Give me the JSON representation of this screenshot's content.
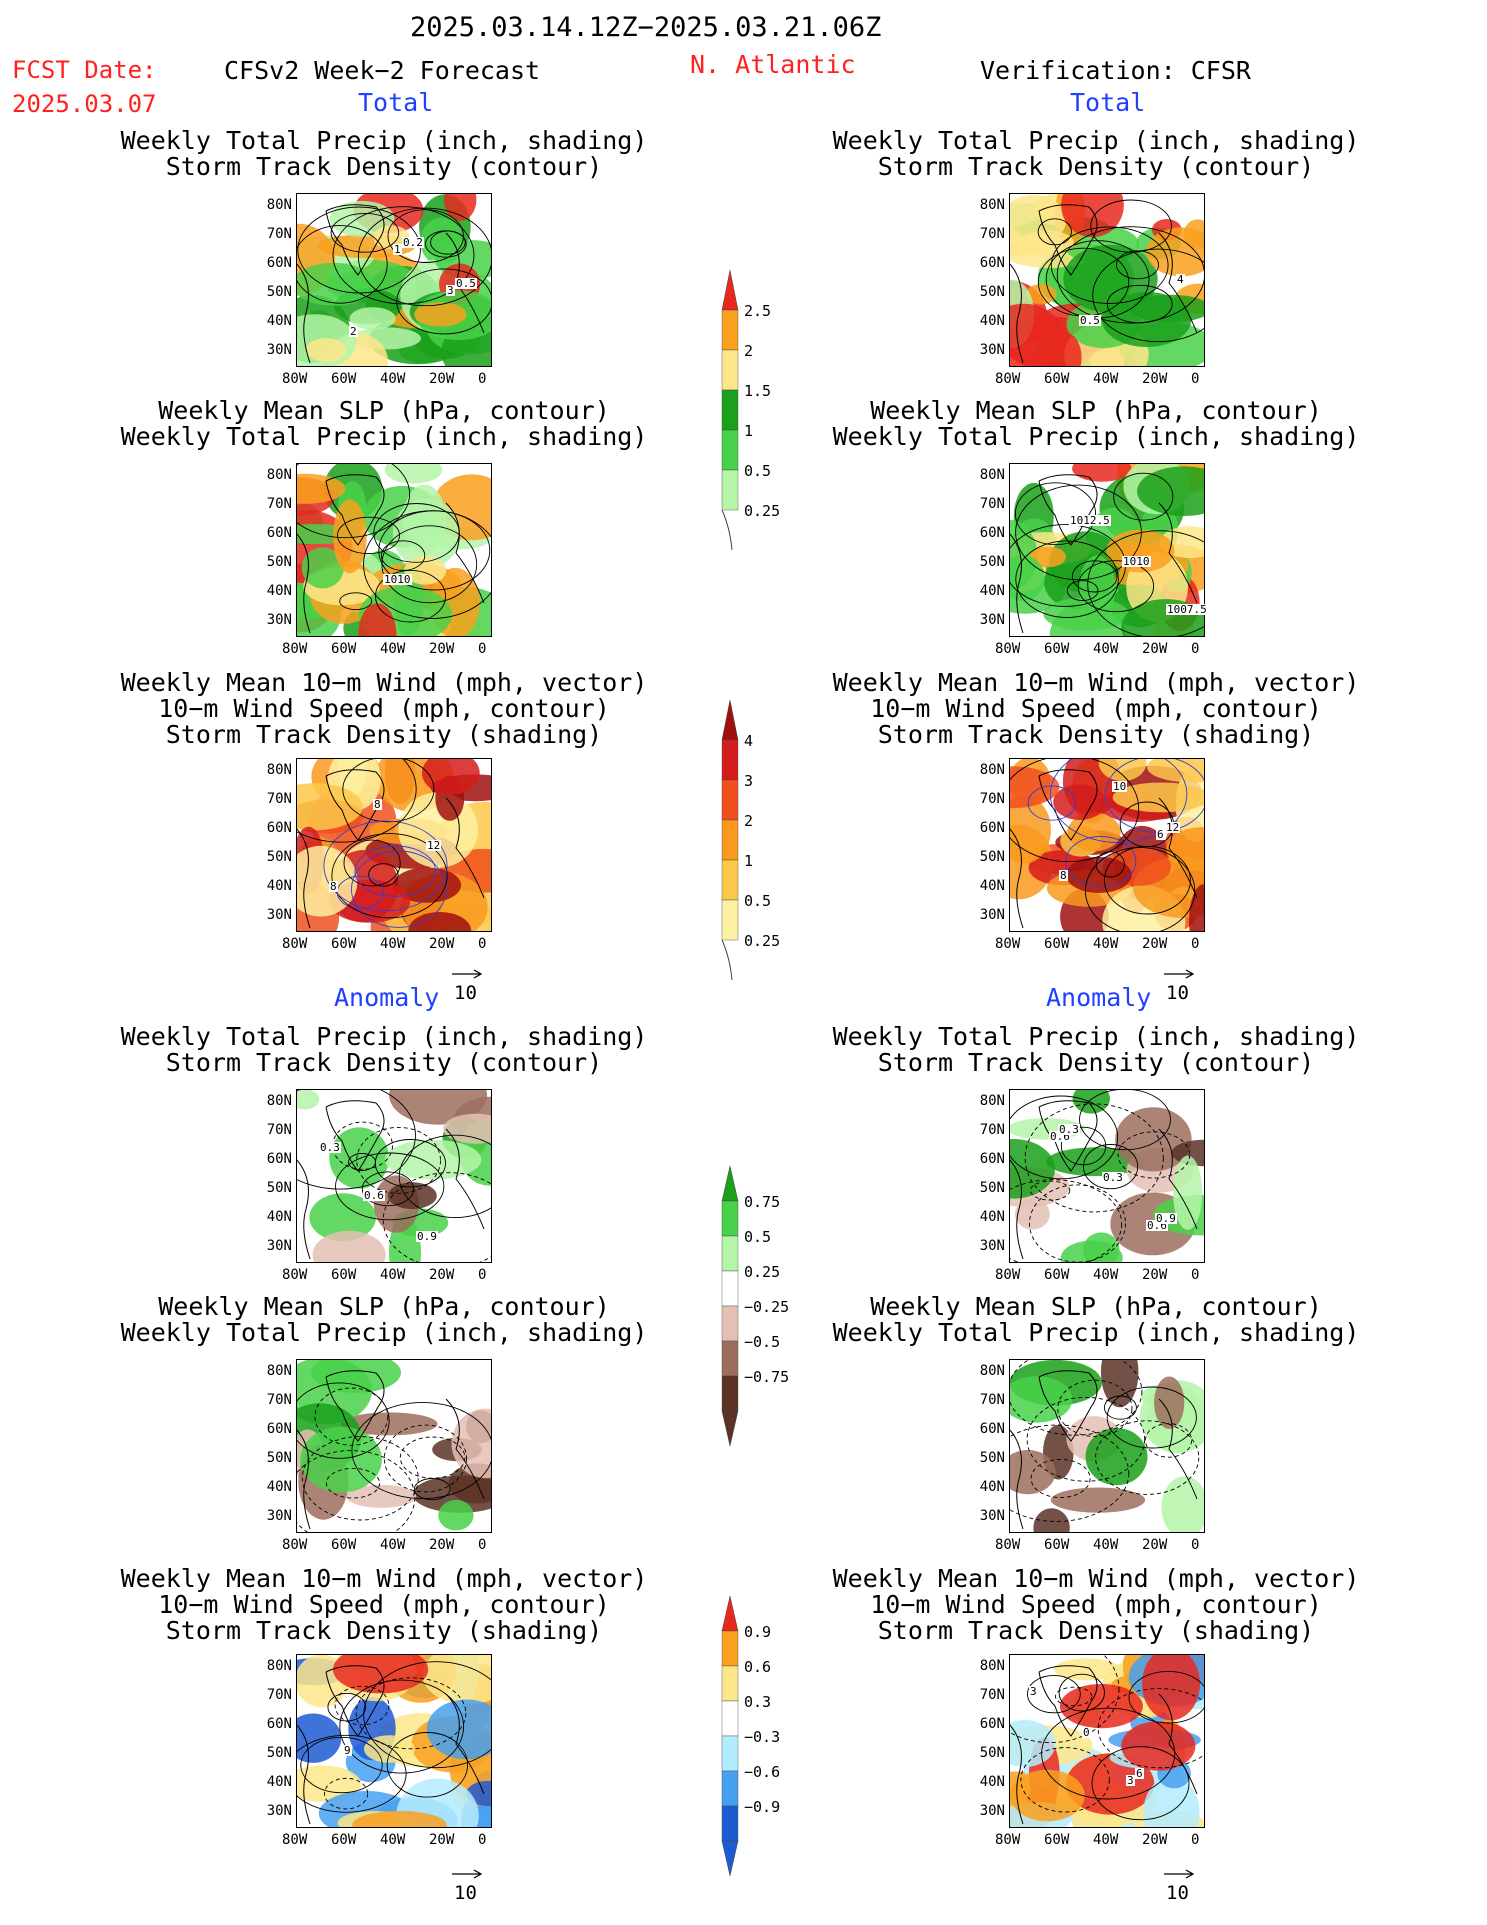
{
  "header": {
    "date_range": "2025.03.14.12Z−2025.03.21.06Z",
    "fcst_label": "FCST Date:",
    "fcst_date": "2025.03.07",
    "forecast_title": "CFSv2 Week−2 Forecast",
    "region": "N. Atlantic",
    "verification": "Verification: CFSR"
  },
  "sections": {
    "total": "Total",
    "anomaly": "Anomaly"
  },
  "panel_titles": {
    "precip_storm": [
      "Weekly Total Precip (inch, shading)",
      "Storm Track Density (contour)"
    ],
    "slp_precip": [
      "Weekly Mean SLP (hPa, contour)",
      "Weekly Total Precip (inch, shading)"
    ],
    "wind_storm": [
      "Weekly Mean 10−m Wind (mph, vector)",
      "10−m Wind Speed (mph, contour)",
      "Storm Track Density (shading)"
    ]
  },
  "axes": {
    "lat_ticks": [
      "80N",
      "70N",
      "60N",
      "50N",
      "40N",
      "30N"
    ],
    "lon_ticks": [
      "80W",
      "60W",
      "40W",
      "20W",
      "0"
    ]
  },
  "vector_reference": "10",
  "contour_labels": {
    "fc_total_precip": [
      "1",
      "3",
      "2",
      "0.2",
      "0.5"
    ],
    "ver_total_precip": [
      "4",
      "0.5"
    ],
    "fc_total_slp": [
      "1010"
    ],
    "ver_total_slp": [
      "1007.5",
      "1012.5",
      "1010"
    ],
    "fc_total_wind": [
      "8",
      "12",
      "8"
    ],
    "ver_total_wind": [
      "6",
      "8",
      "10",
      "12"
    ],
    "fc_anom_precip": [
      "0.6",
      "0.9",
      "0.3"
    ],
    "ver_anom_precip": [
      "0.6",
      "0.6",
      "0.3",
      "0.9",
      "0.3"
    ],
    "fc_anom_wind": [
      "9"
    ],
    "ver_anom_wind": [
      "3",
      "3",
      "0",
      "6"
    ]
  },
  "colorbars": {
    "total_precip": {
      "labels": [
        "2.5",
        "2",
        "1.5",
        "1",
        "0.5",
        "0.25"
      ],
      "colors": [
        "#e8281e",
        "#f9a01e",
        "#fde68a",
        "#1aa01a",
        "#49d149",
        "#b4f5a8"
      ]
    },
    "storm_density": {
      "labels": [
        "4",
        "3",
        "2",
        "1",
        "0.5",
        "0.25"
      ],
      "colors": [
        "#a01010",
        "#d41c1c",
        "#f0501e",
        "#f99a1e",
        "#fbc84a",
        "#fdf0a0"
      ]
    },
    "anom_precip": {
      "labels": [
        "0.75",
        "0.5",
        "0.25",
        "−0.25",
        "−0.5",
        "−0.75"
      ],
      "colors": [
        "#1aa01a",
        "#49d149",
        "#b4f5a8",
        "#ffffff",
        "#e4c0b4",
        "#9c6e5e",
        "#5a3326"
      ]
    },
    "anom_density": {
      "labels": [
        "0.9",
        "0.6",
        "0.3",
        "−0.3",
        "−0.6",
        "−0.9"
      ],
      "colors": [
        "#e8281e",
        "#f9a01e",
        "#fde68a",
        "#ffffff",
        "#b4ecff",
        "#46a0f0",
        "#1e5ad2"
      ]
    }
  }
}
